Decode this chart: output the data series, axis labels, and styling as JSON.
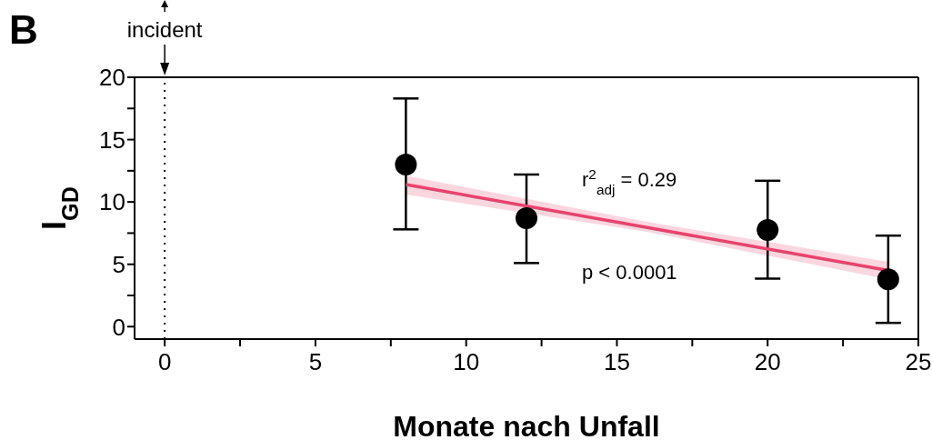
{
  "chart_data": {
    "type": "scatter",
    "title": "B",
    "xlabel": "Monate nach Unfall",
    "ylabel": "I$_{GD}$",
    "xlim": [
      -1,
      25
    ],
    "xticks": [
      0,
      {
        "value": 2.5,
        "label": null
      },
      5,
      {
        "value": 7.5,
        "label": null
      },
      10,
      {
        "value": 12.5,
        "label": null
      },
      15,
      {
        "value": 17.5,
        "label": null
      },
      20,
      {
        "value": 22.5,
        "label": null
      },
      25
    ],
    "ylim": [
      -1,
      20
    ],
    "yticks": [
      0,
      {
        "value": 2.5,
        "label": null
      },
      5,
      {
        "value": 7.5,
        "label": null
      },
      10,
      {
        "value": 12.5,
        "label": null
      },
      15,
      {
        "value": 17.5,
        "label": null
      },
      20
    ],
    "series": [
      {
        "color": "#000000",
        "marker": "circle",
        "x": [
          8,
          12,
          20,
          24
        ],
        "values": [
          13.0,
          8.7,
          7.75,
          3.8
        ],
        "errors": [
          [
            7.8,
            18.3
          ],
          [
            5.1,
            12.2
          ],
          [
            3.85,
            11.7
          ],
          [
            0.3,
            7.3
          ]
        ]
      },
      {
        "type": "line",
        "color": "#e8436e",
        "x": [
          8,
          16,
          24
        ],
        "values": [
          11.4,
          7.95,
          4.5
        ],
        "lower": [
          10.6,
          7.6,
          3.8
        ],
        "upper": [
          12.1,
          8.4,
          5.2
        ]
      }
    ],
    "ref_lines": [
      {
        "axis": "x",
        "value": 0,
        "label": "incident",
        "line_style": "dotted",
        "color": "#000000"
      }
    ],
    "annotations": [
      "r$^{2}$$_{adj}$ = 0.29",
      "p < 0.0001"
    ]
  }
}
